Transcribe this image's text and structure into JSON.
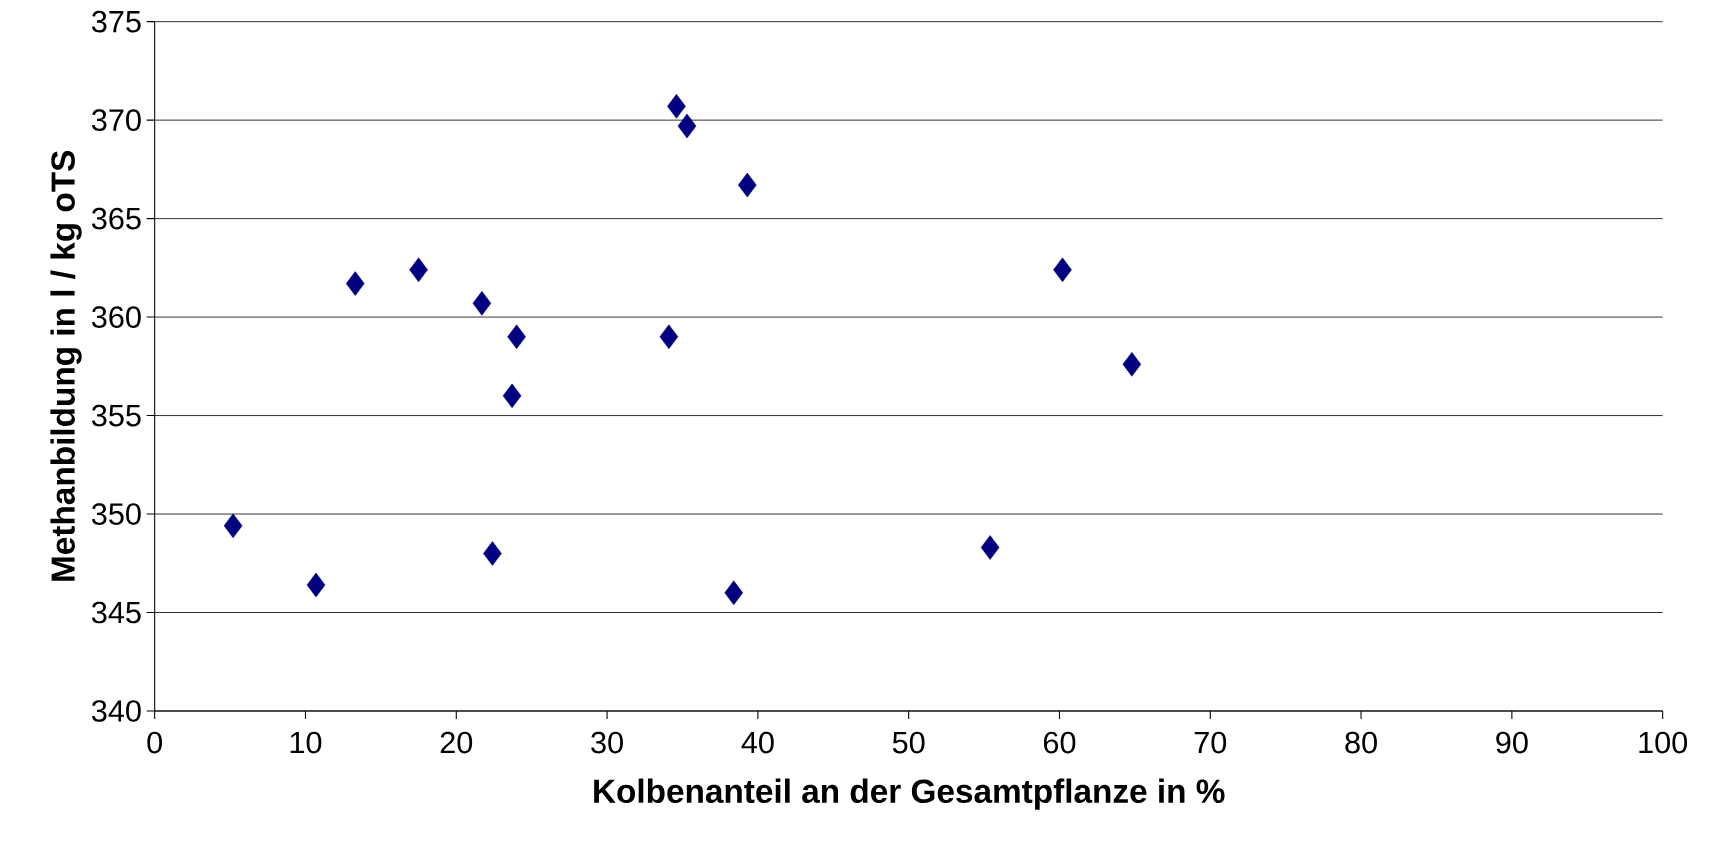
{
  "chart_data": {
    "type": "scatter",
    "xlabel": "Kolbenanteil an der Gesamtpflanze in %",
    "ylabel": "Methanbildung in l / kg oTS",
    "x": [
      5.2,
      10.7,
      13.3,
      17.5,
      21.7,
      22.4,
      24.0,
      23.7,
      34.1,
      34.6,
      35.3,
      38.4,
      39.3,
      55.4,
      60.2,
      64.8
    ],
    "values": [
      349.4,
      346.4,
      361.7,
      362.4,
      360.7,
      348.0,
      359.0,
      356.0,
      359.0,
      370.7,
      369.7,
      346.0,
      366.7,
      348.3,
      362.4,
      357.6
    ],
    "color": "#000080",
    "marker": "diamond",
    "xlim": [
      0,
      100
    ],
    "xticks": [
      0,
      10,
      20,
      30,
      40,
      50,
      60,
      70,
      80,
      90,
      100
    ],
    "ylim": [
      340,
      375
    ],
    "yticks": [
      340,
      345,
      350,
      355,
      360,
      365,
      370,
      375
    ],
    "grid": "y"
  }
}
